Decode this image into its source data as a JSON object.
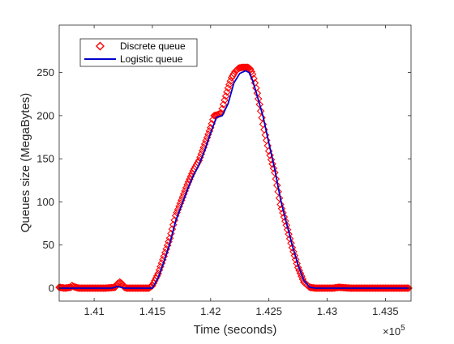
{
  "chart_data": {
    "type": "line",
    "xlabel": "Time (seconds)",
    "ylabel": "Queues size (MegaBytes)",
    "x_multiplier_label": "×10",
    "x_multiplier_exponent": "5",
    "xlim": [
      140700,
      143720
    ],
    "ylim": [
      -15,
      305
    ],
    "xticks": [
      141000,
      141500,
      142000,
      142500,
      143000,
      143500
    ],
    "xtick_labels": [
      "1.41",
      "1.415",
      "1.42",
      "1.425",
      "1.43",
      "1.435"
    ],
    "yticks": [
      0,
      50,
      100,
      150,
      200,
      250
    ],
    "ytick_labels": [
      "0",
      "50",
      "100",
      "150",
      "200",
      "250"
    ],
    "grid": false,
    "legend_position": "top-left",
    "series": [
      {
        "name": "Discrete queue",
        "marker": "diamond",
        "color": "#ff0000",
        "x": [
          140700,
          140750,
          140800,
          140810,
          140820,
          140840,
          140870,
          140900,
          141000,
          141100,
          141180,
          141200,
          141220,
          141240,
          141260,
          141280,
          141300,
          141400,
          141470,
          141500,
          141550,
          141600,
          141650,
          141700,
          141750,
          141800,
          141850,
          141900,
          141950,
          142000,
          142030,
          142060,
          142090,
          142120,
          142150,
          142180,
          142210,
          142240,
          142270,
          142300,
          142320,
          142340,
          142360,
          142380,
          142400,
          142420,
          142450,
          142500,
          142550,
          142600,
          142650,
          142700,
          142750,
          142800,
          142850,
          142900,
          142950,
          143000,
          143050,
          143100,
          143200,
          143300,
          143400,
          143500,
          143600,
          143700
        ],
        "y": [
          1,
          0,
          1,
          3,
          2,
          1,
          0,
          0,
          0,
          0,
          1,
          5,
          7,
          5,
          1,
          0,
          0,
          0,
          0,
          3,
          17,
          37,
          58,
          84,
          102,
          120,
          136,
          148,
          167,
          186,
          200,
          201,
          203,
          218,
          232,
          244,
          251,
          255,
          256,
          256,
          256,
          254,
          248,
          238,
          226,
          213,
          190,
          159,
          134,
          97,
          73,
          47,
          24,
          7,
          1,
          0,
          0,
          0,
          0,
          1,
          0,
          0,
          0,
          0,
          0,
          0
        ]
      },
      {
        "name": "Logistic queue",
        "marker": "none",
        "color": "#0000cc",
        "x": [
          140700,
          141000,
          141150,
          141200,
          141230,
          141260,
          141300,
          141470,
          141500,
          141550,
          141600,
          141650,
          141700,
          141750,
          141800,
          141850,
          141900,
          141950,
          142000,
          142050,
          142100,
          142150,
          142200,
          142250,
          142300,
          142330,
          142360,
          142400,
          142450,
          142500,
          142550,
          142600,
          142650,
          142700,
          142750,
          142800,
          142850,
          142900,
          143000,
          143700
        ],
        "y": [
          0,
          0,
          0,
          2,
          1,
          0,
          0,
          0,
          0,
          12,
          31,
          52,
          78,
          96,
          114,
          130,
          143,
          160,
          180,
          198,
          200,
          214,
          238,
          249,
          252,
          250,
          241,
          223,
          199,
          168,
          138,
          103,
          76,
          50,
          27,
          9,
          1,
          0,
          0,
          0
        ]
      }
    ]
  }
}
